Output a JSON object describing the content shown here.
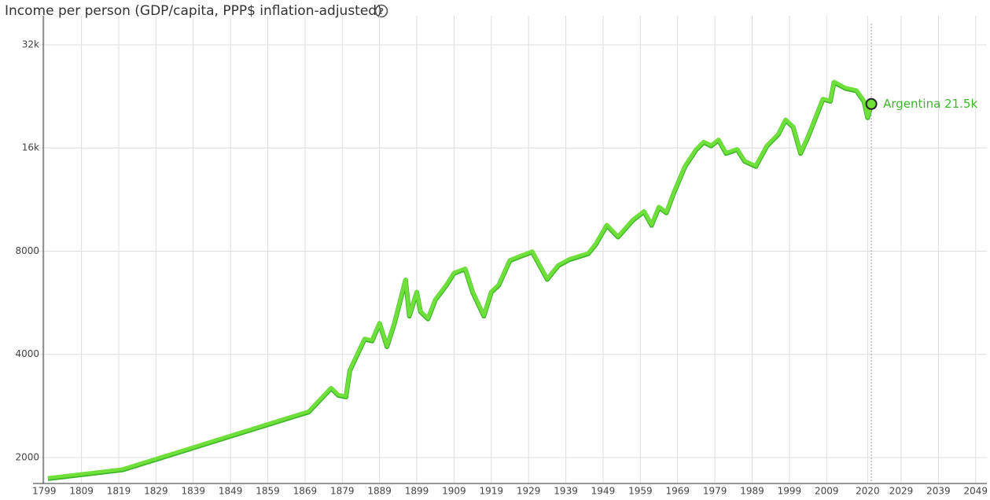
{
  "chart_data": {
    "type": "line",
    "title": "Income per person (GDP/capita, PPP$ inflation-adjusted)",
    "annotation": "Argentina 21.5k",
    "color": "#6fe03a",
    "x": [
      1800,
      1820,
      1870,
      1876,
      1878,
      1880,
      1881,
      1883,
      1885,
      1887,
      1889,
      1891,
      1893,
      1896,
      1897,
      1899,
      1900,
      1902,
      1904,
      1907,
      1909,
      1912,
      1914,
      1917,
      1919,
      1921,
      1924,
      1930,
      1934,
      1937,
      1940,
      1945,
      1947,
      1950,
      1953,
      1957,
      1960,
      1962,
      1964,
      1966,
      1968,
      1971,
      1974,
      1976,
      1978,
      1980,
      1982,
      1985,
      1987,
      1990,
      1993,
      1996,
      1998,
      2000,
      2002,
      2004,
      2008,
      2010,
      2011,
      2014,
      2017,
      2019,
      2020,
      2021
    ],
    "values": [
      1744,
      1850,
      2730,
      3200,
      3050,
      3020,
      3600,
      4000,
      4450,
      4400,
      4950,
      4230,
      4950,
      6620,
      5200,
      6100,
      5350,
      5100,
      5800,
      6400,
      6930,
      7130,
      6100,
      5200,
      6100,
      6400,
      7550,
      8000,
      6650,
      7300,
      7600,
      7900,
      8400,
      9560,
      8840,
      9900,
      10480,
      9560,
      10800,
      10400,
      11900,
      14200,
      15900,
      16700,
      16300,
      16950,
      15500,
      15900,
      14700,
      14200,
      16300,
      17600,
      19400,
      18500,
      15500,
      17300,
      22300,
      22000,
      25000,
      24000,
      23600,
      22000,
      19700,
      21500
    ],
    "xlim": [
      1796,
      2052
    ],
    "xticks": [
      1799,
      1809,
      1819,
      1829,
      1839,
      1849,
      1859,
      1869,
      1879,
      1889,
      1899,
      1909,
      1919,
      1929,
      1939,
      1949,
      1959,
      1969,
      1979,
      1989,
      1999,
      2009,
      2020,
      2029,
      2039,
      2049
    ],
    "ylim": [
      1680,
      38900
    ],
    "yticks": [
      2000,
      4000,
      8000,
      {
        "value": 16000,
        "label": "16k"
      },
      {
        "value": 32000,
        "label": "32k"
      }
    ],
    "log_y": true,
    "grid": true
  }
}
